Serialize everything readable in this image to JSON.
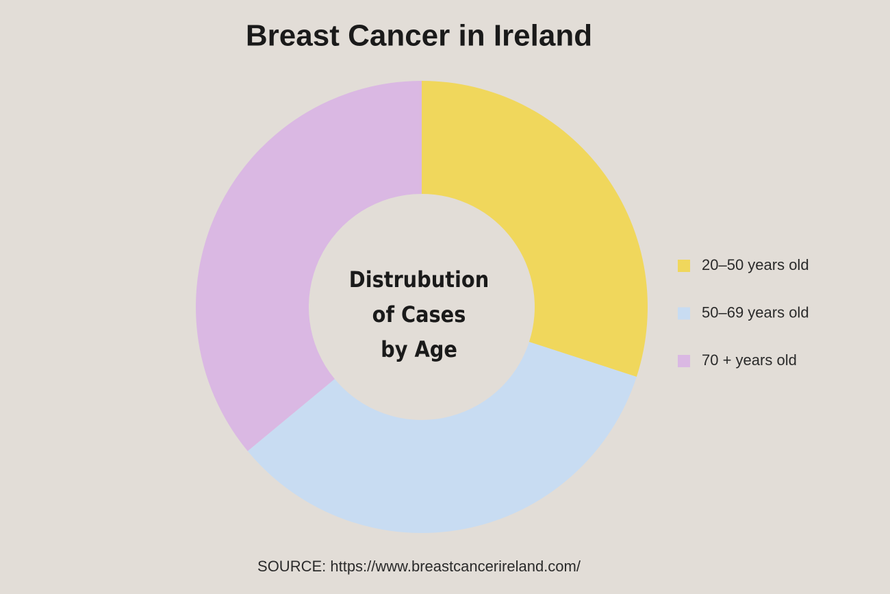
{
  "chart_data": {
    "type": "donut",
    "title": "Breast Cancer in Ireland",
    "center_label": [
      "Distrubution",
      "of Cases",
      "by Age"
    ],
    "categories": [
      "20–50 years old",
      "50–69 years old",
      "70 + years old"
    ],
    "values": [
      30,
      34,
      36
    ],
    "colors": [
      "#f0d75c",
      "#c8dcf2",
      "#dab8e3"
    ],
    "source": "SOURCE: https://www.breastcancerireland.com/"
  }
}
